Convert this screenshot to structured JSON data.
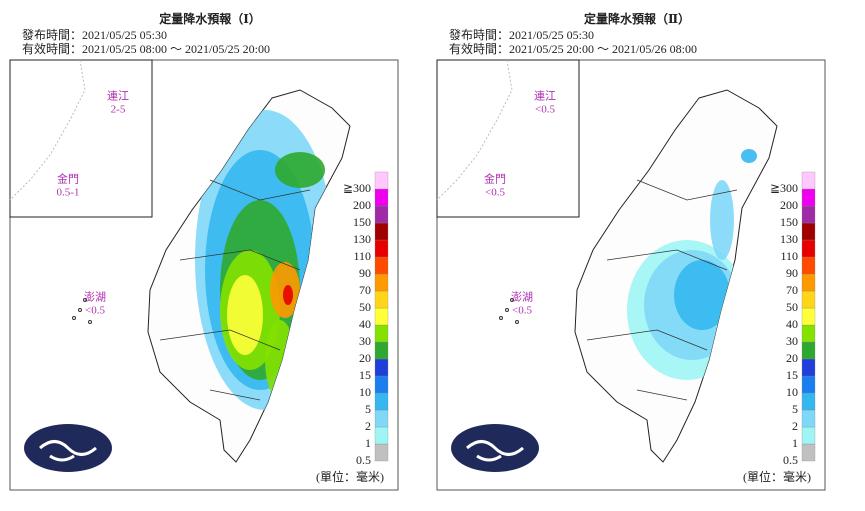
{
  "panels": [
    {
      "title": "定量降水預報（Ⅰ）",
      "issued": "發布時間：2021/05/25 05:30",
      "valid": "有效時間：2021/05/25 08:00 ～ 2021/05/25 20:00",
      "matsu": {
        "name": "連江",
        "value": "2-5"
      },
      "kinmen": {
        "name": "金門",
        "value": "0.5-1"
      },
      "penghu": {
        "name": "澎湖",
        "value": "<0.5"
      },
      "legend_levels": [
        "0.5",
        "1",
        "2",
        "5",
        "10",
        "15",
        "20",
        "30",
        "40",
        "50",
        "70",
        "90",
        "110",
        "130",
        "150",
        "200",
        "≧300"
      ],
      "unit": "(單位：毫米)"
    },
    {
      "title": "定量降水預報（Ⅱ）",
      "issued": "發布時間：2021/05/25 05:30",
      "valid": "有效時間：2021/05/25 20:00 ～ 2021/05/26 08:00",
      "matsu": {
        "name": "連江",
        "value": "<0.5"
      },
      "kinmen": {
        "name": "金門",
        "value": "<0.5"
      },
      "penghu": {
        "name": "澎湖",
        "value": "<0.5"
      },
      "legend_levels": [
        "0.5",
        "1",
        "2",
        "5",
        "10",
        "15",
        "20",
        "30",
        "40",
        "50",
        "70",
        "90",
        "110",
        "130",
        "150",
        "200",
        "≧300"
      ],
      "unit": "(單位：毫米)"
    }
  ],
  "legend_colors": [
    "#c0c0c0",
    "#9ff5f5",
    "#7fd8f8",
    "#35b8f0",
    "#1a7ef0",
    "#1f3fd8",
    "#2ea82e",
    "#84e100",
    "#ffff3a",
    "#ffd51a",
    "#ff9900",
    "#ff4b00",
    "#e60000",
    "#a00000",
    "#9f2aa8",
    "#ee00ee",
    "#ffc8ff"
  ]
}
